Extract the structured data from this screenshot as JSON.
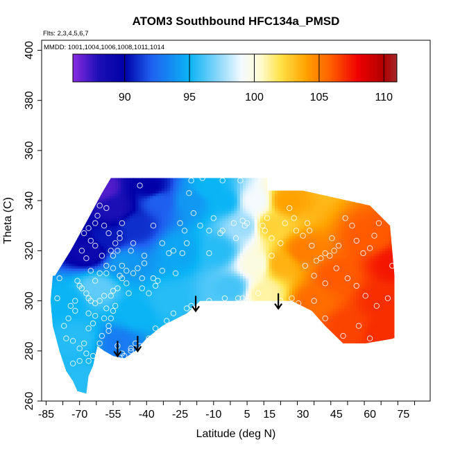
{
  "chart_data": {
    "type": "heatmap",
    "title": "ATOM3 Southbound HFC134a_PMSD",
    "flights_label": "Flts: 2,3,4,5,6,7",
    "dates_label": "MMDD: 1001,1004,1006,1008,1011,1014",
    "xlabel": "Latitude (deg N)",
    "ylabel": "Theta (C)",
    "xlim": [
      -87,
      87
    ],
    "ylim": [
      260,
      404
    ],
    "x_ticks": [
      -85,
      -70,
      -55,
      -40,
      -25,
      -10,
      5,
      15,
      30,
      45,
      60,
      75
    ],
    "y_ticks": [
      260,
      280,
      300,
      320,
      340,
      360,
      380,
      400
    ],
    "colorbar": {
      "min": 86,
      "max": 111,
      "ticks": [
        90,
        95,
        100,
        105,
        110
      ],
      "stops": [
        {
          "v": 86,
          "c": "#8a2be2"
        },
        {
          "v": 88,
          "c": "#1b0fb5"
        },
        {
          "v": 90,
          "c": "#0000a8"
        },
        {
          "v": 92,
          "c": "#1f5ff0"
        },
        {
          "v": 95,
          "c": "#0ab4f5"
        },
        {
          "v": 97,
          "c": "#7dd3fa"
        },
        {
          "v": 99,
          "c": "#f4faff"
        },
        {
          "v": 100.5,
          "c": "#fffbd0"
        },
        {
          "v": 102,
          "c": "#ffe24a"
        },
        {
          "v": 104,
          "c": "#ffa200"
        },
        {
          "v": 106,
          "c": "#ff5a00"
        },
        {
          "v": 108,
          "c": "#f00000"
        },
        {
          "v": 110,
          "c": "#b00000"
        },
        {
          "v": 111,
          "c": "#a52a2a"
        }
      ]
    },
    "domain_outline": [
      [
        -81,
        310
      ],
      [
        -74,
        320
      ],
      [
        -66,
        333
      ],
      [
        -60,
        343
      ],
      [
        -56,
        349
      ],
      [
        -10,
        349
      ],
      [
        14,
        349
      ],
      [
        14,
        344
      ],
      [
        30,
        344
      ],
      [
        60,
        338
      ],
      [
        69,
        330
      ],
      [
        70,
        320
      ],
      [
        71,
        310
      ],
      [
        71,
        285
      ],
      [
        58,
        283
      ],
      [
        48,
        283
      ],
      [
        40,
        290
      ],
      [
        34,
        296
      ],
      [
        25,
        300
      ],
      [
        12,
        300
      ],
      [
        0,
        300
      ],
      [
        -10,
        300
      ],
      [
        -16,
        300
      ],
      [
        -22,
        295
      ],
      [
        -33,
        290
      ],
      [
        -40,
        285
      ],
      [
        -45,
        280
      ],
      [
        -50,
        277
      ],
      [
        -55,
        278
      ],
      [
        -59,
        280
      ],
      [
        -62,
        282
      ],
      [
        -63,
        278
      ],
      [
        -64,
        274
      ],
      [
        -66,
        270
      ],
      [
        -67,
        263
      ],
      [
        -71,
        264
      ],
      [
        -73,
        268
      ],
      [
        -76,
        272
      ],
      [
        -79,
        280
      ],
      [
        -82,
        290
      ],
      [
        -83,
        300
      ],
      [
        -82,
        310
      ]
    ],
    "field_samples": [
      {
        "lat": -60,
        "theta": 345,
        "value": 87
      },
      {
        "lat": -55,
        "theta": 337,
        "value": 88
      },
      {
        "lat": -66,
        "theta": 320,
        "value": 89
      },
      {
        "lat": -45,
        "theta": 330,
        "value": 91
      },
      {
        "lat": -35,
        "theta": 340,
        "value": 92
      },
      {
        "lat": -20,
        "theta": 340,
        "value": 94
      },
      {
        "lat": -25,
        "theta": 320,
        "value": 94.5
      },
      {
        "lat": -50,
        "theta": 315,
        "value": 94
      },
      {
        "lat": -45,
        "theta": 295,
        "value": 95
      },
      {
        "lat": -75,
        "theta": 300,
        "value": 95
      },
      {
        "lat": -70,
        "theta": 285,
        "value": 95.5
      },
      {
        "lat": -67,
        "theta": 268,
        "value": 95.5
      },
      {
        "lat": -53,
        "theta": 283,
        "value": 93
      },
      {
        "lat": -8,
        "theta": 320,
        "value": 95.5
      },
      {
        "lat": -5,
        "theta": 340,
        "value": 95
      },
      {
        "lat": -2,
        "theta": 305,
        "value": 96
      },
      {
        "lat": 4,
        "theta": 330,
        "value": 97.5
      },
      {
        "lat": 8,
        "theta": 340,
        "value": 99
      },
      {
        "lat": 9,
        "theta": 315,
        "value": 100
      },
      {
        "lat": 12,
        "theta": 303,
        "value": 101
      },
      {
        "lat": 15,
        "theta": 330,
        "value": 102.5
      },
      {
        "lat": 20,
        "theta": 315,
        "value": 103.5
      },
      {
        "lat": 23,
        "theta": 340,
        "value": 104
      },
      {
        "lat": 30,
        "theta": 320,
        "value": 105
      },
      {
        "lat": 35,
        "theta": 300,
        "value": 105.5
      },
      {
        "lat": 45,
        "theta": 310,
        "value": 106
      },
      {
        "lat": 50,
        "theta": 290,
        "value": 106.5
      },
      {
        "lat": 60,
        "theta": 325,
        "value": 106
      },
      {
        "lat": 65,
        "theta": 300,
        "value": 107
      },
      {
        "lat": 70,
        "theta": 315,
        "value": 107.5
      },
      {
        "lat": 66,
        "theta": 288,
        "value": 107
      },
      {
        "lat": -58,
        "theta": 325,
        "value": 90.5
      },
      {
        "lat": -38,
        "theta": 345,
        "value": 90
      },
      {
        "lat": -12,
        "theta": 345,
        "value": 95
      },
      {
        "lat": -30,
        "theta": 300,
        "value": 95.5
      },
      {
        "lat": -62,
        "theta": 305,
        "value": 96.5
      }
    ],
    "obs_points": [
      [
        -43,
        346
      ],
      [
        -58,
        337
      ],
      [
        -37,
        330
      ],
      [
        -33,
        323
      ],
      [
        -30,
        319
      ],
      [
        -28,
        320
      ],
      [
        -21,
        343
      ],
      [
        -20,
        348
      ],
      [
        -15,
        349
      ],
      [
        -6,
        348
      ],
      [
        -19,
        335
      ],
      [
        -10,
        333
      ],
      [
        -6,
        328
      ],
      [
        -1,
        331
      ],
      [
        4,
        330
      ],
      [
        5,
        331
      ],
      [
        2,
        348
      ],
      [
        1,
        301
      ],
      [
        3,
        301
      ],
      [
        -25,
        331
      ],
      [
        -23,
        328
      ],
      [
        -27,
        311
      ],
      [
        -36,
        306
      ],
      [
        -41,
        318
      ],
      [
        -41,
        315
      ],
      [
        -46,
        323
      ],
      [
        -49,
        312
      ],
      [
        -51,
        314
      ],
      [
        -52,
        310
      ],
      [
        -53,
        305
      ],
      [
        -55,
        304
      ],
      [
        -56,
        302
      ],
      [
        -59,
        302
      ],
      [
        -61,
        300
      ],
      [
        -63,
        299
      ],
      [
        -65,
        300
      ],
      [
        -66,
        301
      ],
      [
        -67,
        303
      ],
      [
        -69,
        305
      ],
      [
        -70,
        306
      ],
      [
        -71,
        308
      ],
      [
        -72,
        300
      ],
      [
        -74,
        298
      ],
      [
        -79,
        309
      ],
      [
        -80,
        301
      ],
      [
        -76,
        285
      ],
      [
        -73,
        284
      ],
      [
        -70,
        281
      ],
      [
        -67,
        279
      ],
      [
        -61,
        283
      ],
      [
        -60,
        286
      ],
      [
        -57,
        288
      ],
      [
        -56,
        293
      ],
      [
        -55,
        296
      ],
      [
        -54,
        298
      ],
      [
        -58,
        297
      ],
      [
        -63,
        294
      ],
      [
        -66,
        289
      ],
      [
        -70,
        276
      ],
      [
        -66,
        276
      ],
      [
        -62,
        275
      ],
      [
        -53,
        282
      ],
      [
        -50,
        278
      ],
      [
        -47,
        281
      ],
      [
        -45,
        283
      ],
      [
        -42,
        305
      ],
      [
        -39,
        303
      ],
      [
        -37,
        309
      ],
      [
        -62,
        334
      ],
      [
        -63,
        322
      ],
      [
        -65,
        324
      ],
      [
        -60,
        318
      ],
      [
        -58,
        311
      ],
      [
        -56,
        320
      ],
      [
        -54,
        323
      ],
      [
        -52,
        325
      ],
      [
        -47,
        320
      ],
      [
        -46,
        311
      ],
      [
        -44,
        313
      ],
      [
        -42,
        309
      ],
      [
        -35,
        308
      ],
      [
        -33,
        312
      ],
      [
        -49,
        307
      ],
      [
        -51,
        309
      ],
      [
        -48,
        303
      ],
      [
        -55,
        313
      ],
      [
        -58,
        314
      ],
      [
        -61,
        311
      ],
      [
        -63,
        308
      ],
      [
        -65,
        312
      ],
      [
        -67,
        317
      ],
      [
        -69,
        320
      ],
      [
        -68,
        327
      ],
      [
        -66,
        329
      ],
      [
        -63,
        331
      ],
      [
        -61,
        338
      ],
      [
        -59,
        330
      ],
      [
        -57,
        327
      ],
      [
        -55,
        318
      ],
      [
        -53,
        320
      ],
      [
        -52,
        327
      ],
      [
        -51,
        331
      ],
      [
        -24,
        319
      ],
      [
        -22,
        323
      ],
      [
        -12,
        319
      ],
      [
        -16,
        330
      ],
      [
        -12,
        328
      ],
      [
        -7,
        327
      ],
      [
        0,
        325
      ],
      [
        3,
        332
      ],
      [
        14,
        333
      ],
      [
        12,
        330
      ],
      [
        13,
        328
      ],
      [
        16,
        325
      ],
      [
        16,
        318
      ],
      [
        20,
        323
      ],
      [
        22,
        331
      ],
      [
        24,
        337
      ],
      [
        26,
        333
      ],
      [
        27,
        328
      ],
      [
        30,
        326
      ],
      [
        32,
        331
      ],
      [
        33,
        328
      ],
      [
        34,
        322
      ],
      [
        36,
        316
      ],
      [
        38,
        317
      ],
      [
        40,
        319
      ],
      [
        42,
        318
      ],
      [
        44,
        320
      ],
      [
        43,
        325
      ],
      [
        46,
        322
      ],
      [
        49,
        333
      ],
      [
        52,
        330
      ],
      [
        54,
        324
      ],
      [
        57,
        319
      ],
      [
        60,
        321
      ],
      [
        62,
        326
      ],
      [
        64,
        331
      ],
      [
        66,
        336
      ],
      [
        67,
        337
      ],
      [
        31,
        314
      ],
      [
        35,
        310
      ],
      [
        40,
        307
      ],
      [
        45,
        313
      ],
      [
        50,
        309
      ],
      [
        54,
        306
      ],
      [
        58,
        302
      ],
      [
        63,
        298
      ],
      [
        68,
        301
      ],
      [
        70,
        314
      ],
      [
        71,
        284
      ],
      [
        60,
        285
      ],
      [
        55,
        290
      ],
      [
        48,
        286
      ],
      [
        40,
        293
      ],
      [
        35,
        300
      ],
      [
        28,
        299
      ],
      [
        10,
        303
      ],
      [
        5,
        300
      ],
      [
        -5,
        301
      ],
      [
        -12,
        300
      ],
      [
        -20,
        298
      ],
      [
        -22,
        297
      ],
      [
        -28,
        295
      ],
      [
        -31,
        292
      ],
      [
        -36,
        289
      ],
      [
        -39,
        285
      ],
      [
        -43,
        282
      ],
      [
        -47,
        280
      ],
      [
        -51,
        279
      ],
      [
        25,
        301
      ],
      [
        20,
        300
      ],
      [
        -68,
        283
      ],
      [
        -64,
        278
      ],
      [
        -73,
        275
      ],
      [
        -77,
        290
      ],
      [
        -75,
        293
      ],
      [
        -72,
        296
      ],
      [
        -66,
        295
      ],
      [
        -64,
        291
      ],
      [
        -59,
        293
      ],
      [
        -57,
        290
      ]
    ],
    "arrows": [
      {
        "lat": -53,
        "theta": 284
      },
      {
        "lat": -44,
        "theta": 286
      },
      {
        "lat": -18,
        "theta": 302
      },
      {
        "lat": 19,
        "theta": 303
      }
    ]
  }
}
